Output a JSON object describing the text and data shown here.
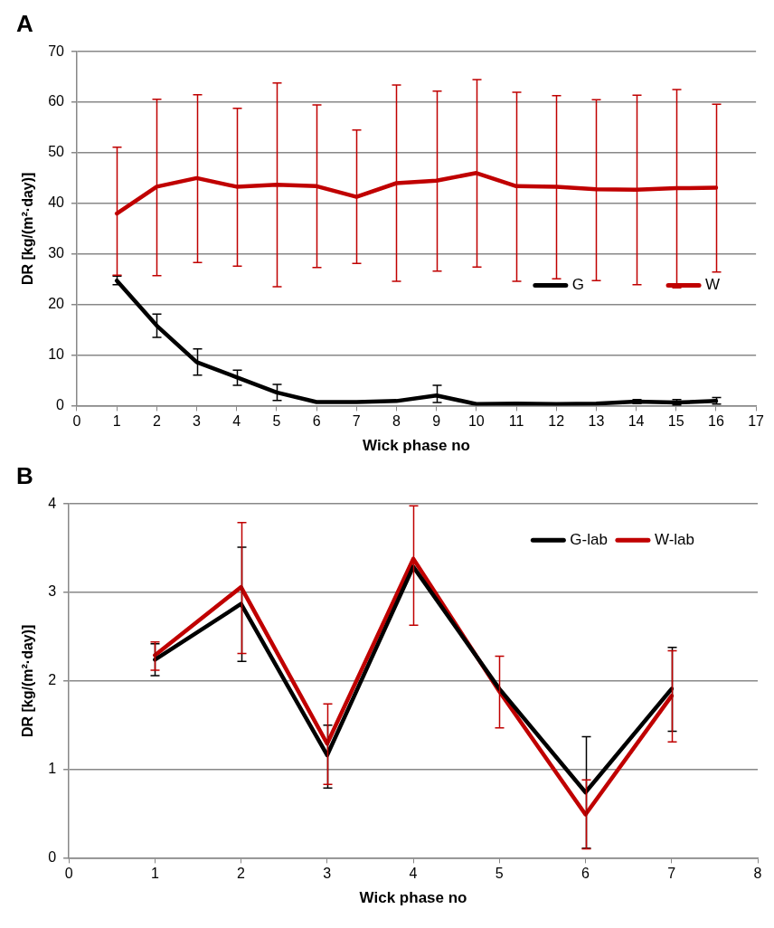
{
  "chart_data": [
    {
      "type": "line",
      "title": "A",
      "xlabel": "Wick phase no",
      "ylabel": "DR [kg/(m²·day)]",
      "x": [
        1,
        2,
        3,
        4,
        5,
        6,
        7,
        8,
        9,
        10,
        11,
        12,
        13,
        14,
        15,
        16
      ],
      "xlim": [
        0,
        17
      ],
      "xticks": [
        0,
        1,
        2,
        3,
        4,
        5,
        6,
        7,
        8,
        9,
        10,
        11,
        12,
        13,
        14,
        15,
        16,
        17
      ],
      "ylim": [
        0,
        70
      ],
      "yticks": [
        0,
        10,
        20,
        30,
        40,
        50,
        60,
        70
      ],
      "grid": "y",
      "legend": "right",
      "marker": "none",
      "line_style": "solid",
      "series": [
        {
          "name": "G",
          "color": "#000000",
          "values": [
            24.7,
            15.8,
            8.6,
            5.6,
            2.6,
            0.7,
            0.7,
            0.9,
            2.0,
            0.3,
            0.4,
            0.3,
            0.4,
            0.8,
            0.6,
            0.9
          ],
          "errors": [
            [
              23.9,
              25.6
            ],
            [
              13.5,
              18.1
            ],
            [
              6,
              11.2
            ],
            [
              4,
              7
            ],
            [
              1,
              4.2
            ],
            null,
            null,
            null,
            [
              0.6,
              4
            ],
            null,
            null,
            null,
            null,
            [
              0.4,
              1.2
            ],
            [
              0.1,
              1.2
            ],
            [
              0.3,
              1.6
            ]
          ]
        },
        {
          "name": "W",
          "color": "#c00000",
          "values": [
            38,
            43.3,
            45,
            43.3,
            43.7,
            43.4,
            41.3,
            44,
            44.5,
            46,
            43.4,
            43.3,
            42.8,
            42.7,
            43,
            43.1
          ],
          "errors": [
            [
              25.8,
              51.1
            ],
            [
              25.7,
              60.6
            ],
            [
              28.3,
              61.5
            ],
            [
              27.6,
              58.8
            ],
            [
              23.5,
              63.8
            ],
            [
              27.3,
              59.5
            ],
            [
              28.1,
              54.5
            ],
            [
              24.6,
              63.4
            ],
            [
              26.6,
              62.2
            ],
            [
              27.4,
              64.5
            ],
            [
              24.6,
              62
            ],
            [
              25.1,
              61.3
            ],
            [
              24.7,
              60.5
            ],
            [
              23.9,
              61.4
            ],
            [
              23.3,
              62.5
            ],
            [
              26.4,
              59.6
            ]
          ]
        }
      ]
    },
    {
      "type": "line",
      "title": "B",
      "xlabel": "Wick phase no",
      "ylabel": "DR [kg/(m²·day)]",
      "x": [
        1,
        2,
        3,
        4,
        5,
        6,
        7
      ],
      "xlim": [
        0,
        8
      ],
      "xticks": [
        0,
        1,
        2,
        3,
        4,
        5,
        6,
        7,
        8
      ],
      "ylim": [
        0,
        4
      ],
      "yticks": [
        0,
        1,
        2,
        3,
        4
      ],
      "grid": "y",
      "legend": "top right",
      "marker": "none",
      "line_style": "solid",
      "series": [
        {
          "name": "G-lab",
          "color": "#000000",
          "values": [
            2.24,
            2.87,
            1.16,
            3.29,
            1.91,
            0.74,
            1.91
          ],
          "errors": [
            [
              2.06,
              2.42
            ],
            [
              2.22,
              3.51
            ],
            [
              0.79,
              1.5
            ],
            null,
            null,
            [
              0.11,
              1.37
            ],
            [
              1.43,
              2.38
            ]
          ]
        },
        {
          "name": "W-lab",
          "color": "#c00000",
          "values": [
            2.29,
            3.06,
            1.29,
            3.38,
            1.88,
            0.49,
            1.83
          ],
          "errors": [
            [
              2.12,
              2.44
            ],
            [
              2.31,
              3.79
            ],
            [
              0.83,
              1.74
            ],
            [
              2.63,
              3.98
            ],
            [
              1.47,
              2.28
            ],
            [
              0.1,
              0.88
            ],
            [
              1.31,
              2.34
            ]
          ]
        }
      ]
    }
  ]
}
